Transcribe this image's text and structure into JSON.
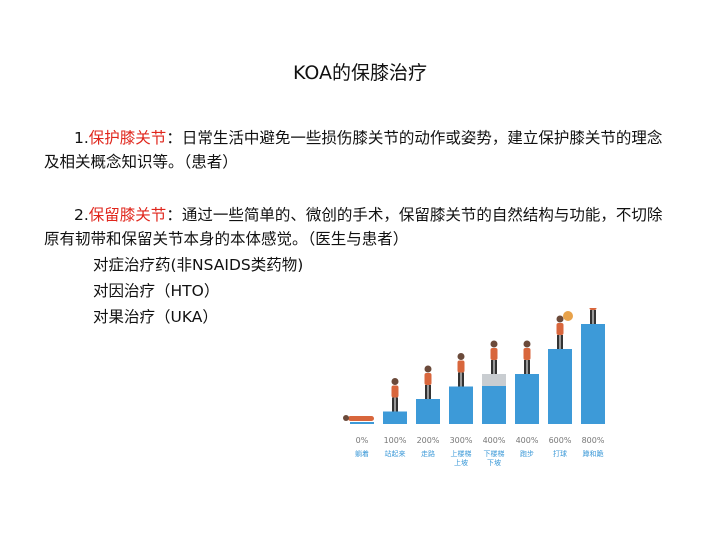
{
  "title": "KOA的保膝治疗",
  "item1": {
    "number": "1.",
    "term": "保护膝关节",
    "rest": "：日常生活中避免一些损伤膝关节的动作或姿势，建立保护膝关节的理念及相关概念知识等。（患者）"
  },
  "item2": {
    "number": "2.",
    "term": "保留膝关节",
    "rest": "：通过一些简单的、微创的手术，保留膝关节的自然结构与功能，不切除原有韧带和保留关节本身的本体感觉。（医生与患者）"
  },
  "sub_items": [
    "对症治疗药(非NSAIDS类药物)",
    "对因治疗（HTO）",
    "对果治疗（UKA）"
  ],
  "colors": {
    "accent_red": "#e0261c",
    "bar_blue": "#3d9ad8",
    "label_blue": "#3d9ad8",
    "percent_gray": "#777777",
    "figure_orange": "#d8663c"
  },
  "chart_data": {
    "type": "bar",
    "categories": [
      "躺着",
      "站起来",
      "走路",
      "上楼梯\n上坡",
      "下楼梯\n下坡",
      "跑步",
      "打球",
      "蹲和跪"
    ],
    "tick_labels": [
      "0%",
      "100%",
      "200%",
      "300%",
      "400%",
      "400%",
      "600%",
      "800%"
    ],
    "values": [
      0,
      100,
      200,
      300,
      400,
      400,
      600,
      800
    ],
    "annotation_overlay": "gray band on 下楼梯 bar",
    "title": "",
    "xlabel": "",
    "ylabel": ""
  }
}
